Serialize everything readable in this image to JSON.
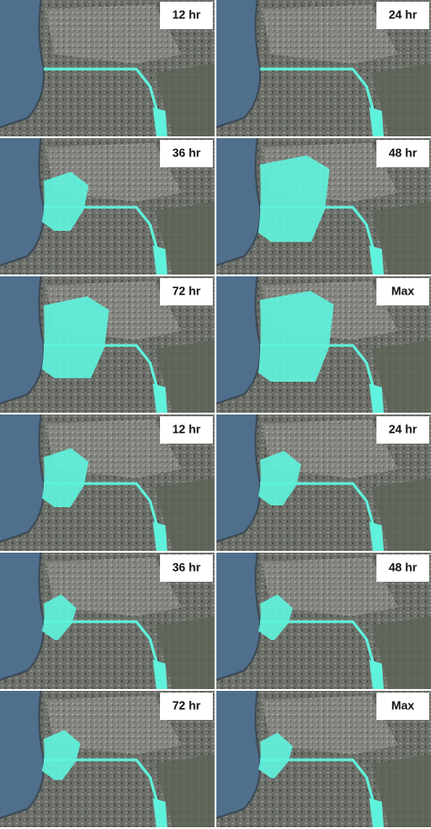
{
  "panels": [
    {
      "label": "12 hr"
    },
    {
      "label": "24 hr"
    },
    {
      "label": "36 hr"
    },
    {
      "label": "48 hr"
    },
    {
      "label": "72 hr"
    },
    {
      "label": "Max"
    },
    {
      "label": "12 hr"
    },
    {
      "label": "24 hr"
    },
    {
      "label": "36 hr"
    },
    {
      "label": "48 hr"
    },
    {
      "label": "72 hr"
    },
    {
      "label": "Max"
    }
  ]
}
